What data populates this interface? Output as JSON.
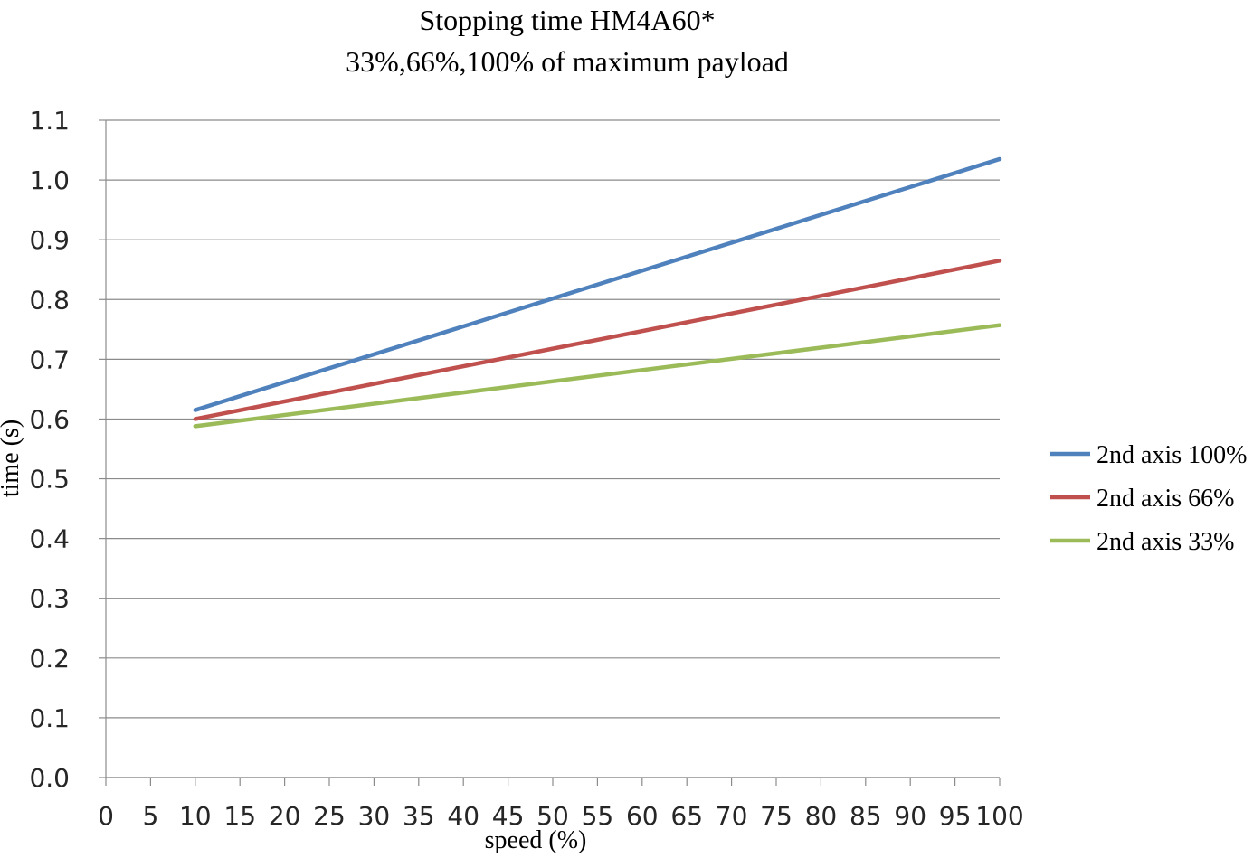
{
  "chart_data": {
    "type": "line",
    "title": "Stopping time HM4A60*",
    "subtitle": "33%,66%,100% of maximum payload",
    "xlabel": "speed (%)",
    "ylabel": "time (s)",
    "xlim": [
      0,
      100
    ],
    "ylim": [
      0.0,
      1.1
    ],
    "x_ticks": [
      0,
      5,
      10,
      15,
      20,
      25,
      30,
      35,
      40,
      45,
      50,
      55,
      60,
      65,
      70,
      75,
      80,
      85,
      90,
      95,
      100
    ],
    "y_tick_values": [
      0.0,
      0.1,
      0.2,
      0.3,
      0.4,
      0.5,
      0.6,
      0.7,
      0.8,
      0.9,
      1.0,
      1.1
    ],
    "y_tick_labels": [
      "0.0",
      "0.1",
      "0.2",
      "0.3",
      "0.4",
      "0.5",
      "0.6",
      "0.7",
      "0.8",
      "0.9",
      "1.0",
      "1.1"
    ],
    "grid": "horizontal",
    "legend_position": "right-middle",
    "series": [
      {
        "name": "2nd axis 100%",
        "color": "#4F81BD",
        "x": [
          10,
          100
        ],
        "y": [
          0.615,
          1.035
        ]
      },
      {
        "name": "2nd axis 66%",
        "color": "#C0504D",
        "x": [
          10,
          100
        ],
        "y": [
          0.6,
          0.865
        ]
      },
      {
        "name": "2nd axis 33%",
        "color": "#9BBB59",
        "x": [
          10,
          100
        ],
        "y": [
          0.588,
          0.757
        ]
      }
    ],
    "colors": {
      "gridline": "#8B8B8B",
      "axis": "#8B8B8B",
      "title_text": "#000000",
      "tick_text": "#262626"
    }
  }
}
